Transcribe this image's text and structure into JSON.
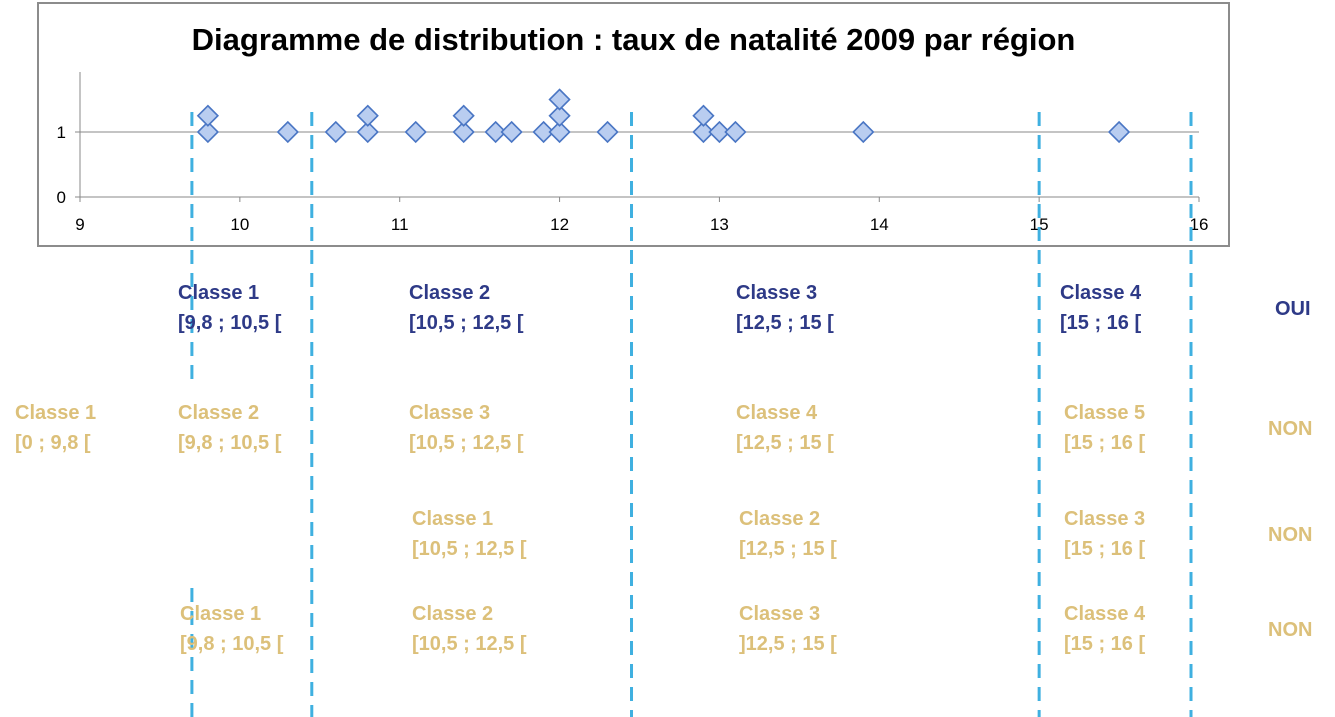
{
  "chart_data": {
    "type": "scatter",
    "title": "Diagramme de distribution : taux de natalité 2009 par région",
    "xlim": [
      9,
      16
    ],
    "ylim": [
      0,
      1.5
    ],
    "x_ticks": [
      "9",
      "10",
      "11",
      "12",
      "13",
      "14",
      "15",
      "16"
    ],
    "y_ticks": [
      "0",
      "1"
    ],
    "grid": false,
    "marker": "diamond",
    "marker_color": "#b9cdf0",
    "marker_edge": "#4a76c4",
    "points": [
      {
        "x": 9.8,
        "y": 1
      },
      {
        "x": 9.8,
        "y": 1.25
      },
      {
        "x": 10.3,
        "y": 1
      },
      {
        "x": 10.6,
        "y": 1
      },
      {
        "x": 10.8,
        "y": 1
      },
      {
        "x": 10.8,
        "y": 1.25
      },
      {
        "x": 11.1,
        "y": 1
      },
      {
        "x": 11.4,
        "y": 1
      },
      {
        "x": 11.4,
        "y": 1.25
      },
      {
        "x": 11.6,
        "y": 1
      },
      {
        "x": 11.7,
        "y": 1
      },
      {
        "x": 11.9,
        "y": 1
      },
      {
        "x": 12.0,
        "y": 1
      },
      {
        "x": 12.0,
        "y": 1.25
      },
      {
        "x": 12.0,
        "y": 1.5
      },
      {
        "x": 12.3,
        "y": 1
      },
      {
        "x": 12.9,
        "y": 1
      },
      {
        "x": 12.9,
        "y": 1.25
      },
      {
        "x": 13.0,
        "y": 1
      },
      {
        "x": 13.1,
        "y": 1
      },
      {
        "x": 13.9,
        "y": 1
      },
      {
        "x": 15.5,
        "y": 1
      }
    ]
  },
  "class_boundaries": [
    9.7,
    10.45,
    12.45,
    15.0,
    15.95
  ],
  "colors": {
    "oui": "#2e3a87",
    "non": "#dcc07a",
    "guide": "#3fb0e0"
  },
  "rows": [
    {
      "verdict": "OUI",
      "classes": [
        {
          "name": "Classe 1",
          "range": "[9,8 ; 10,5 ["
        },
        {
          "name": "Classe 2",
          "range": "[10,5 ; 12,5 ["
        },
        {
          "name": "Classe 3",
          "range": "[12,5 ; 15 ["
        },
        {
          "name": "Classe 4",
          "range": "[15 ; 16 ["
        }
      ]
    },
    {
      "verdict": "NON",
      "classes": [
        {
          "name": "Classe 1",
          "range": "[0 ; 9,8 ["
        },
        {
          "name": "Classe 2",
          "range": "[9,8 ; 10,5 ["
        },
        {
          "name": "Classe 3",
          "range": "[10,5 ; 12,5 ["
        },
        {
          "name": "Classe 4",
          "range": "[12,5 ; 15 ["
        },
        {
          "name": "Classe 5",
          "range": "[15 ; 16 ["
        }
      ]
    },
    {
      "verdict": "NON",
      "classes": [
        {
          "name": "Classe 1",
          "range": "[10,5 ; 12,5 ["
        },
        {
          "name": "Classe 2",
          "range": "[12,5 ; 15 ["
        },
        {
          "name": "Classe 3",
          "range": "[15 ; 16 ["
        }
      ]
    },
    {
      "verdict": "NON",
      "classes": [
        {
          "name": "Classe 1",
          "range": "[9,8 ; 10,5 ["
        },
        {
          "name": "Classe 2",
          "range": "[10,5 ; 12,5 ["
        },
        {
          "name": "Classe 3",
          "range": "]12,5 ; 15 ["
        },
        {
          "name": "Classe 4",
          "range": "[15 ; 16 ["
        }
      ]
    }
  ]
}
